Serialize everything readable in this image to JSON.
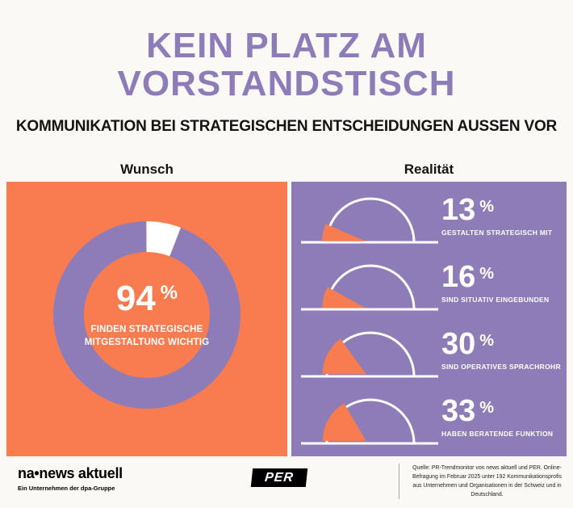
{
  "header": {
    "title_line1": "KEIN PLATZ AM",
    "title_line2": "VORSTANDSTISCH",
    "subtitle": "KOMMUNIKATION BEI STRATEGISCHEN ENTSCHEIDUNGEN AUSSEN VOR"
  },
  "section_labels": {
    "left": "Wunsch",
    "right": "Realität"
  },
  "chart_data": [
    {
      "type": "donut",
      "section": "Wunsch",
      "value": 94,
      "unit": "%",
      "label": "FINDEN STRATEGISCHE MITGESTALTUNG WICHTIG",
      "label_lines": [
        "FINDEN STRATEGISCHE",
        "MITGESTALTUNG WICHTIG"
      ],
      "ring_color": "#8E7CB8",
      "remainder_color": "#FFFFFF",
      "background_color": "#F87C50"
    },
    {
      "type": "gauge",
      "section": "Realität",
      "unit": "%",
      "items": [
        {
          "value": 13,
          "label": "GESTALTEN STRATEGISCH MIT"
        },
        {
          "value": 16,
          "label": "SIND SITUATIV EINGEBUNDEN"
        },
        {
          "value": 30,
          "label": "SIND OPERATIVES SPRACHROHR"
        },
        {
          "value": 33,
          "label": "HABEN BERATENDE FUNKTION"
        }
      ],
      "arc_color": "#FFFFFF",
      "fill_color": "#F87C50",
      "background_color": "#8E7CB8"
    }
  ],
  "footer": {
    "brand": "na•news aktuell",
    "brand_subtitle": "Ein Unternehmen der dpa-Gruppe",
    "partner_logo": "PER",
    "source": "Quelle: PR-Trendmonitor von news aktuell und PER. Online-Befragung im Februar 2025 unter 192 Kommunikationsprofis aus Unternehmen und Organisationen in der Schweiz und in Deutschland."
  },
  "colors": {
    "purple": "#8E7CB8",
    "orange": "#F87C50",
    "text_dark": "#141414",
    "background": "#FBF9F6"
  }
}
